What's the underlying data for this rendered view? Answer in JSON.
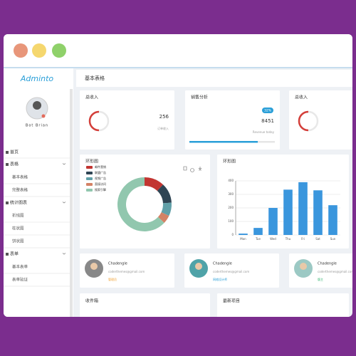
{
  "logo": "Adminto",
  "user": "Bot Brian",
  "menu": [
    {
      "label": "首页"
    },
    {
      "label": "表格",
      "children": [
        "基本表格",
        "完整表格"
      ]
    },
    {
      "label": "统计图表",
      "children": [
        "折线图",
        "柱状图",
        "饼状图"
      ]
    },
    {
      "label": "表单",
      "children": [
        "基本表单",
        "表单验证"
      ]
    }
  ],
  "page_title": "基本表格",
  "stats": [
    {
      "title": "总收入",
      "value": 256,
      "caption": "订单收入"
    },
    {
      "title": "销售分析",
      "badge": "32%",
      "value": 8451,
      "caption": "Revenue today"
    },
    {
      "title": "总收入"
    }
  ],
  "donut_chart": {
    "type": "pie",
    "title": "环形图",
    "categories": [
      "邮件营销",
      "联盟广告",
      "视频广告",
      "直接访问",
      "搜索引擎"
    ],
    "values": [
      12,
      12,
      8,
      5,
      63
    ],
    "colors": [
      "#c23531",
      "#2f4554",
      "#61a0a8",
      "#d48265",
      "#91c7ae"
    ]
  },
  "bar_chart": {
    "type": "bar",
    "title": "环形图",
    "categories": [
      "Mon",
      "Tue",
      "Wed",
      "Thu",
      "Fri",
      "Sat",
      "Sun"
    ],
    "values": [
      10,
      52,
      200,
      335,
      390,
      330,
      220
    ],
    "color": "#3a96dd",
    "ylim": [
      0,
      400
    ],
    "yticks": [
      0,
      100,
      200,
      300,
      400
    ],
    "grid": true
  },
  "profiles": [
    {
      "name": "Chadengle",
      "email": "coderthemes@gmail.com",
      "role": "管理员",
      "color": "#f0a030"
    },
    {
      "name": "Chadengle",
      "email": "coderthemes@gmail.com",
      "role": "网络设计师",
      "color": "#2a9fd8"
    },
    {
      "name": "Chadengle",
      "email": "coderthemes@gmail.com",
      "role": "版主",
      "color": "#2cb36b"
    }
  ],
  "bottom_cards": [
    "收件箱",
    "最新项目"
  ]
}
